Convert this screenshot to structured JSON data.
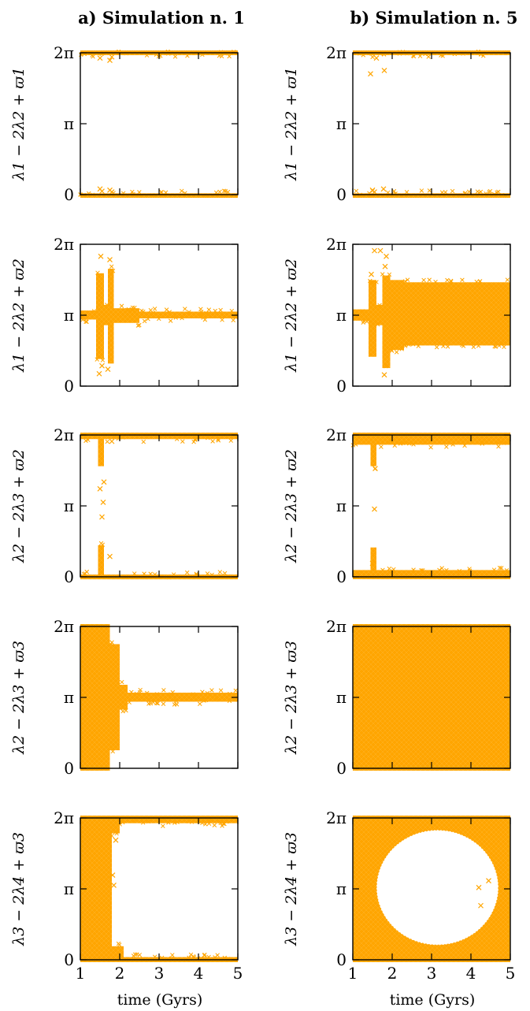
{
  "chart_data": {
    "type": "scatter",
    "marker": "x",
    "color": "#FFA500",
    "columns": [
      {
        "id": "a",
        "title": "a) Simulation n. 1"
      },
      {
        "id": "b",
        "title": "b) Simulation n. 5"
      }
    ],
    "xlabel": "time (Gyrs)",
    "xlim": [
      1,
      5
    ],
    "xticks": [
      "1",
      "2",
      "3",
      "4",
      "5"
    ],
    "ylim": [
      0,
      6.2832
    ],
    "yticks": [
      {
        "value": 0,
        "label": "0"
      },
      {
        "value": 3.1416,
        "label": "π"
      },
      {
        "value": 6.2832,
        "label": "2π"
      }
    ],
    "rows": [
      {
        "ylabel": "λ1 − 2λ2 + ϖ1"
      },
      {
        "ylabel": "λ1 − 2λ2 + ϖ2"
      },
      {
        "ylabel": "λ2 − 2λ3 + ϖ2"
      },
      {
        "ylabel": "λ2 − 2λ3 + ϖ3"
      },
      {
        "ylabel": "λ3 − 2λ4 + ϖ3"
      }
    ],
    "panels": [
      {
        "row": 0,
        "col": "a",
        "behavior": "libration about 0 (mod 2π)",
        "bands": [
          {
            "x": [
              1,
              5
            ],
            "ymin": 0,
            "ymax": 0.06
          },
          {
            "x": [
              1,
              5
            ],
            "ymin": 6.22,
            "ymax": 6.2832
          }
        ],
        "outliers": [
          [
            1.5,
            0.25
          ],
          [
            1.55,
            0.15
          ],
          [
            1.75,
            0.2
          ],
          [
            1.8,
            0.12
          ],
          [
            1.5,
            6.05
          ],
          [
            1.75,
            5.95
          ],
          [
            1.8,
            6.1
          ]
        ]
      },
      {
        "row": 0,
        "col": "b",
        "behavior": "libration about 0 (mod 2π)",
        "bands": [
          {
            "x": [
              1,
              5
            ],
            "ymin": 0,
            "ymax": 0.06
          },
          {
            "x": [
              1,
              5
            ],
            "ymin": 6.22,
            "ymax": 6.2832
          }
        ],
        "outliers": [
          [
            1.5,
            0.2
          ],
          [
            1.55,
            0.12
          ],
          [
            1.78,
            0.25
          ],
          [
            1.45,
            5.35
          ],
          [
            1.8,
            5.5
          ],
          [
            1.6,
            6.05
          ]
        ]
      },
      {
        "row": 1,
        "col": "a",
        "behavior": "libration about π",
        "bands": [
          {
            "x": [
              1,
              1.4
            ],
            "ymin": 2.95,
            "ymax": 3.35
          },
          {
            "x": [
              1.4,
              1.6
            ],
            "ymin": 1.2,
            "ymax": 5.0
          },
          {
            "x": [
              1.6,
              1.7
            ],
            "ymin": 2.7,
            "ymax": 3.6
          },
          {
            "x": [
              1.7,
              1.85
            ],
            "ymin": 1.0,
            "ymax": 5.2
          },
          {
            "x": [
              1.85,
              2.5
            ],
            "ymin": 2.8,
            "ymax": 3.45
          },
          {
            "x": [
              2.5,
              5
            ],
            "ymin": 3.0,
            "ymax": 3.3
          }
        ],
        "outliers": [
          [
            1.52,
            5.75
          ],
          [
            1.48,
            0.55
          ],
          [
            1.75,
            5.6
          ],
          [
            1.7,
            0.75
          ],
          [
            1.55,
            0.9
          ]
        ]
      },
      {
        "row": 1,
        "col": "b",
        "behavior": "libration about π",
        "bands": [
          {
            "x": [
              1,
              1.4
            ],
            "ymin": 2.9,
            "ymax": 3.4
          },
          {
            "x": [
              1.4,
              1.6
            ],
            "ymin": 1.3,
            "ymax": 4.7
          },
          {
            "x": [
              1.6,
              1.75
            ],
            "ymin": 2.7,
            "ymax": 3.6
          },
          {
            "x": [
              1.75,
              1.95
            ],
            "ymin": 0.8,
            "ymax": 4.9
          },
          {
            "x": [
              1.95,
              2.3
            ],
            "ymin": 1.6,
            "ymax": 4.7
          },
          {
            "x": [
              2.3,
              5
            ],
            "ymin": 1.8,
            "ymax": 4.6
          }
        ],
        "outliers": [
          [
            1.55,
            6.0
          ],
          [
            1.7,
            6.0
          ],
          [
            1.85,
            5.75
          ],
          [
            1.82,
            5.3
          ],
          [
            1.47,
            4.95
          ],
          [
            1.8,
            0.5
          ]
        ]
      },
      {
        "row": 2,
        "col": "a",
        "behavior": "libration about 0 (mod 2π)",
        "bands": [
          {
            "x": [
              1,
              5
            ],
            "ymin": 0,
            "ymax": 0.1
          },
          {
            "x": [
              1,
              5
            ],
            "ymin": 6.1,
            "ymax": 6.2832
          },
          {
            "x": [
              1.45,
              1.6
            ],
            "ymin": 0,
            "ymax": 1.4
          },
          {
            "x": [
              1.45,
              1.6
            ],
            "ymin": 4.9,
            "ymax": 6.2832
          }
        ],
        "outliers": [
          [
            1.55,
            2.65
          ],
          [
            1.5,
            3.9
          ],
          [
            1.58,
            3.3
          ],
          [
            1.75,
            0.9
          ],
          [
            1.8,
            6.0
          ],
          [
            1.6,
            4.2
          ]
        ]
      },
      {
        "row": 2,
        "col": "b",
        "behavior": "libration about 0 (mod 2π)",
        "bands": [
          {
            "x": [
              1,
              5
            ],
            "ymin": 0,
            "ymax": 0.3
          },
          {
            "x": [
              1,
              5
            ],
            "ymin": 5.85,
            "ymax": 6.2832
          },
          {
            "x": [
              1.45,
              1.6
            ],
            "ymin": 0,
            "ymax": 1.3
          },
          {
            "x": [
              1.45,
              1.6
            ],
            "ymin": 4.9,
            "ymax": 6.2832
          }
        ],
        "outliers": [
          [
            1.55,
            3.0
          ],
          [
            1.5,
            0.6
          ],
          [
            1.57,
            4.8
          ],
          [
            1.52,
            1.0
          ]
        ]
      },
      {
        "row": 3,
        "col": "a",
        "behavior": "circulation, then libration about π after ~1.9 Gyr",
        "bands": [
          {
            "x": [
              1,
              1.75
            ],
            "ymin": 0,
            "ymax": 6.2832
          },
          {
            "x": [
              1.75,
              2.0
            ],
            "ymin": 0.8,
            "ymax": 5.5
          },
          {
            "x": [
              2.0,
              2.2
            ],
            "ymin": 2.6,
            "ymax": 3.7
          },
          {
            "x": [
              2.2,
              5
            ],
            "ymin": 2.95,
            "ymax": 3.35
          }
        ],
        "outliers": []
      },
      {
        "row": 3,
        "col": "b",
        "behavior": "circulation",
        "bands": [
          {
            "x": [
              1,
              5
            ],
            "ymin": 0,
            "ymax": 6.2832
          }
        ],
        "outliers": []
      },
      {
        "row": 4,
        "col": "a",
        "behavior": "circulation, then libration about 0 (mod 2π)",
        "bands": [
          {
            "x": [
              1,
              1.8
            ],
            "ymin": 0,
            "ymax": 6.2832
          },
          {
            "x": [
              1.8,
              5
            ],
            "ymin": 0,
            "ymax": 0.12
          },
          {
            "x": [
              1.8,
              5
            ],
            "ymin": 6.05,
            "ymax": 6.2832
          },
          {
            "x": [
              1.8,
              2.1
            ],
            "ymin": 0,
            "ymax": 0.6
          },
          {
            "x": [
              1.8,
              2.0
            ],
            "ymin": 5.6,
            "ymax": 6.2832
          }
        ],
        "outliers": [
          [
            1.82,
            3.75
          ],
          [
            1.85,
            3.3
          ],
          [
            1.9,
            5.3
          ]
        ]
      },
      {
        "row": 4,
        "col": "b",
        "behavior": "circulation with empty region around π",
        "bands": [
          {
            "x": [
              1,
              5
            ],
            "ymin": 0,
            "ymax": 6.2832
          }
        ],
        "hole": {
          "cx": 3.15,
          "cy": 3.2,
          "rx": 1.55,
          "ry": 2.55
        },
        "outliers": [
          [
            4.2,
            3.2
          ],
          [
            4.25,
            2.4
          ],
          [
            4.45,
            3.5
          ]
        ]
      }
    ]
  }
}
